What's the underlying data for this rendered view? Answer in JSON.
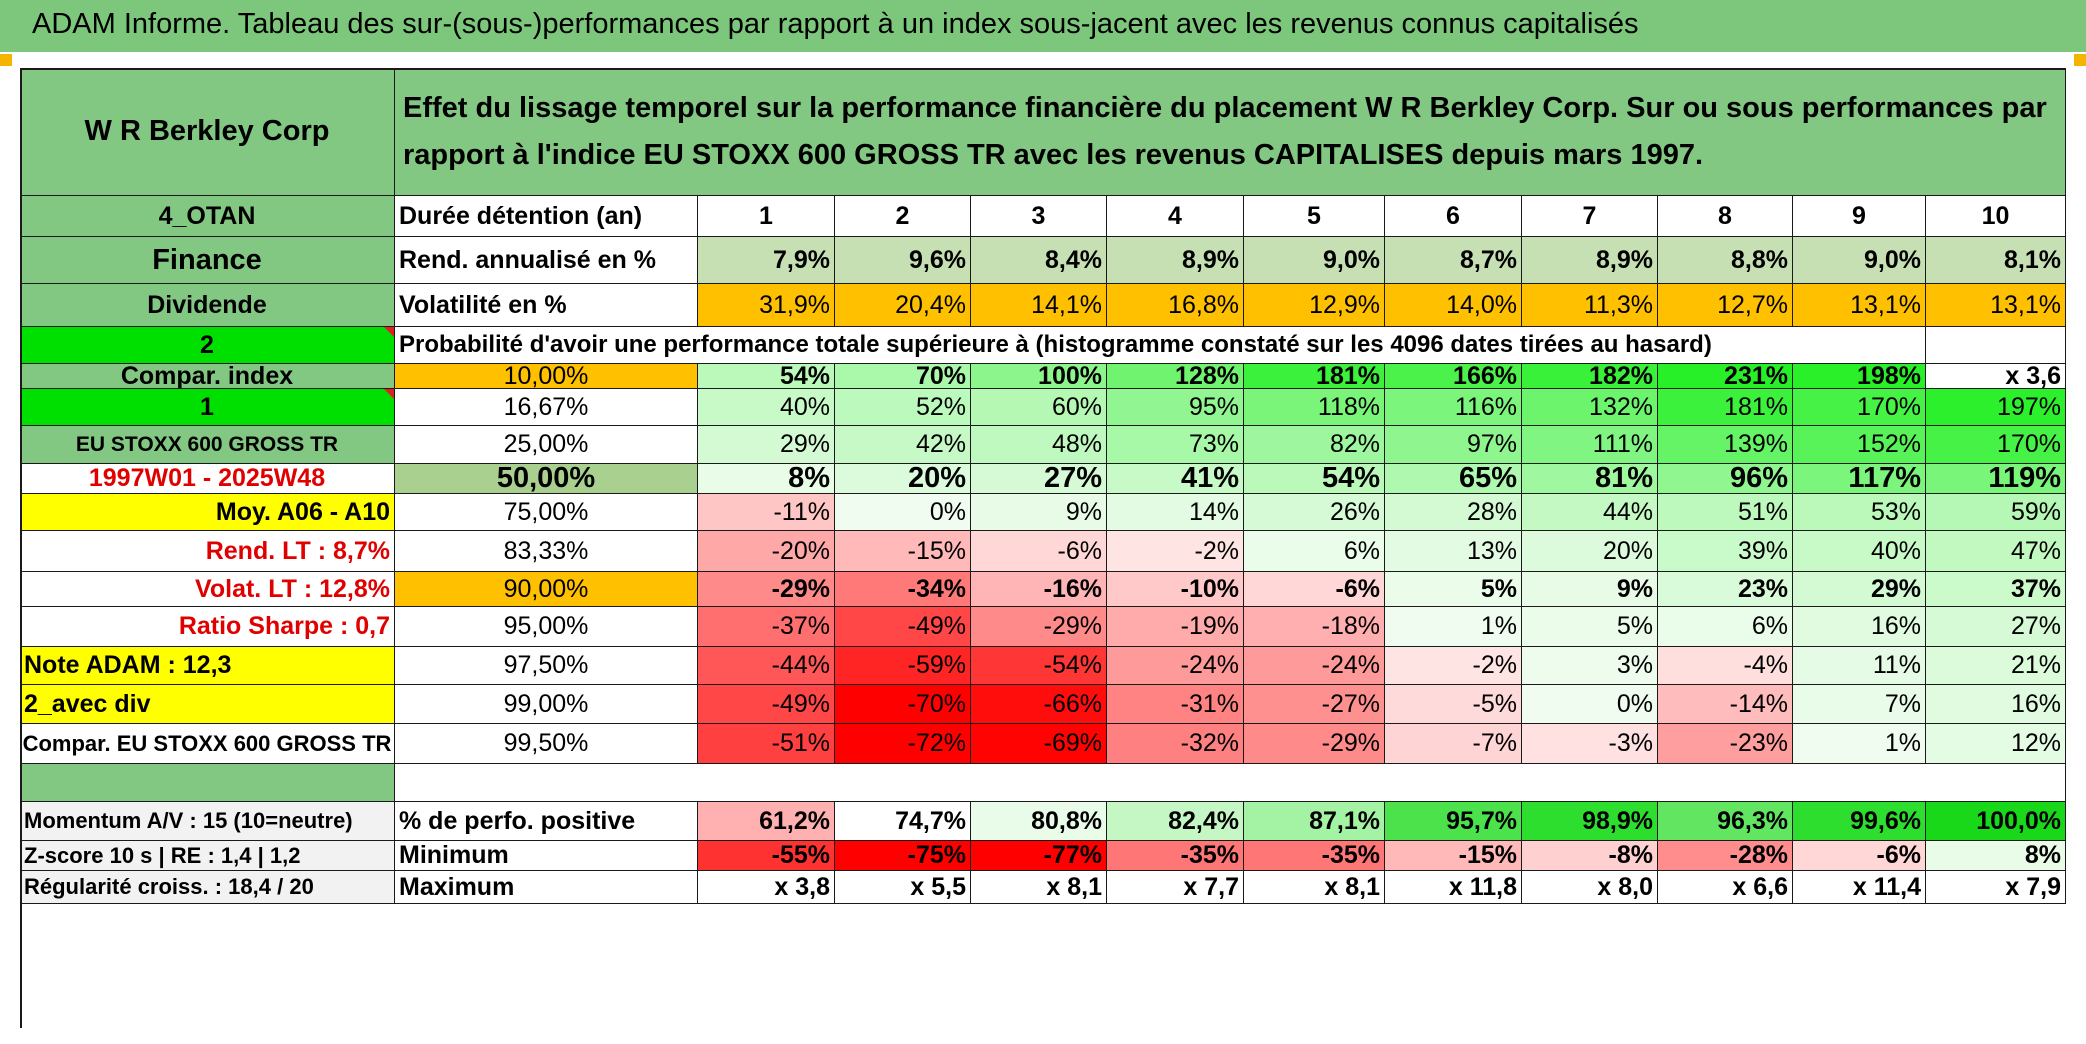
{
  "header": {
    "title": "ADAM Informe. Tableau des sur-(sous-)performances par rapport à un index sous-jacent avec les revenus connus capitalisés"
  },
  "company": "W R Berkley Corp",
  "description": "Effet du lissage temporel sur la performance financière du placement W R Berkley Corp. Sur ou sous performances par rapport à l'indice EU STOXX 600 GROSS TR avec les revenus CAPITALISES depuis mars 1997.",
  "left": {
    "otan": "4_OTAN",
    "sector": "Finance",
    "type": "Dividende",
    "n2": "2",
    "compar_index": "Compar. index",
    "n1": "1",
    "index_name": "EU STOXX 600 GROSS TR",
    "period": "1997W01 - 2025W48",
    "moy": "Moy. A06 - A10",
    "rend_lt": "Rend. LT :   8,7%",
    "volat_lt": "Volat. LT :   12,8%",
    "sharpe": "Ratio Sharpe :   0,7",
    "note": "Note ADAM : 12,3",
    "avec_div": "2_avec div",
    "compar_full": "Compar. EU STOXX 600 GROSS TR",
    "momentum": "Momentum A/V : 15 (10=neutre)",
    "zscore": "Z-score 10 s | RE : 1,4 | 1,2",
    "regularite": "Régularité croiss. : 18,4 / 20"
  },
  "labels": {
    "duree": "Durée détention (an)",
    "rend": "Rend. annualisé en %",
    "volat": "Volatilité en %",
    "proba": "Probabilité d'avoir une performance totale supérieure à (histogramme constaté sur les 4096 dates tirées au hasard)",
    "perfo_pos": "% de perfo. positive",
    "minimum": "Minimum",
    "maximum": "Maximum"
  },
  "years": [
    "1",
    "2",
    "3",
    "4",
    "5",
    "6",
    "7",
    "8",
    "9",
    "10"
  ],
  "rend": [
    "7,9%",
    "9,6%",
    "8,4%",
    "8,9%",
    "9,0%",
    "8,7%",
    "8,9%",
    "8,8%",
    "9,0%",
    "8,1%"
  ],
  "volat": [
    "31,9%",
    "20,4%",
    "14,1%",
    "16,8%",
    "12,9%",
    "14,0%",
    "11,3%",
    "12,7%",
    "13,1%",
    "13,1%"
  ],
  "percentiles": [
    {
      "pct": "10,00%",
      "values": [
        "54%",
        "70%",
        "100%",
        "128%",
        "181%",
        "166%",
        "182%",
        "231%",
        "198%",
        "x 3,6"
      ]
    },
    {
      "pct": "16,67%",
      "values": [
        "40%",
        "52%",
        "60%",
        "95%",
        "118%",
        "116%",
        "132%",
        "181%",
        "170%",
        "197%"
      ]
    },
    {
      "pct": "25,00%",
      "values": [
        "29%",
        "42%",
        "48%",
        "73%",
        "82%",
        "97%",
        "111%",
        "139%",
        "152%",
        "170%"
      ]
    },
    {
      "pct": "50,00%",
      "values": [
        "8%",
        "20%",
        "27%",
        "41%",
        "54%",
        "65%",
        "81%",
        "96%",
        "117%",
        "119%"
      ]
    },
    {
      "pct": "75,00%",
      "values": [
        "-11%",
        "0%",
        "9%",
        "14%",
        "26%",
        "28%",
        "44%",
        "51%",
        "53%",
        "59%"
      ]
    },
    {
      "pct": "83,33%",
      "values": [
        "-20%",
        "-15%",
        "-6%",
        "-2%",
        "6%",
        "13%",
        "20%",
        "39%",
        "40%",
        "47%"
      ]
    },
    {
      "pct": "90,00%",
      "values": [
        "-29%",
        "-34%",
        "-16%",
        "-10%",
        "-6%",
        "5%",
        "9%",
        "23%",
        "29%",
        "37%"
      ]
    },
    {
      "pct": "95,00%",
      "values": [
        "-37%",
        "-49%",
        "-29%",
        "-19%",
        "-18%",
        "1%",
        "5%",
        "6%",
        "16%",
        "27%"
      ]
    },
    {
      "pct": "97,50%",
      "values": [
        "-44%",
        "-59%",
        "-54%",
        "-24%",
        "-24%",
        "-2%",
        "3%",
        "-4%",
        "11%",
        "21%"
      ]
    },
    {
      "pct": "99,00%",
      "values": [
        "-49%",
        "-70%",
        "-66%",
        "-31%",
        "-27%",
        "-5%",
        "0%",
        "-14%",
        "7%",
        "16%"
      ]
    },
    {
      "pct": "99,50%",
      "values": [
        "-51%",
        "-72%",
        "-69%",
        "-32%",
        "-29%",
        "-7%",
        "-3%",
        "-23%",
        "1%",
        "12%"
      ]
    }
  ],
  "perfo_pos": [
    "61,2%",
    "74,7%",
    "80,8%",
    "82,4%",
    "87,1%",
    "95,7%",
    "98,9%",
    "96,3%",
    "99,6%",
    "100,0%"
  ],
  "minimum": [
    "-55%",
    "-75%",
    "-77%",
    "-35%",
    "-35%",
    "-15%",
    "-8%",
    "-28%",
    "-6%",
    "8%"
  ],
  "maximum": [
    "x 3,8",
    "x 5,5",
    "x 8,1",
    "x 7,7",
    "x 8,1",
    "x 11,8",
    "x 8,0",
    "x 6,6",
    "x 11,4",
    "x 7,9"
  ],
  "colors": {
    "title_green": "#7dc77d",
    "header_green": "#82c882",
    "bright_green": "#00e000",
    "yellow": "#ffff00",
    "orange": "#ffc000",
    "light_olive": "#c6e0b4",
    "median_olive": "#a9d08e",
    "red_text": "#e00000",
    "left_grey": "#f2f2f2"
  }
}
